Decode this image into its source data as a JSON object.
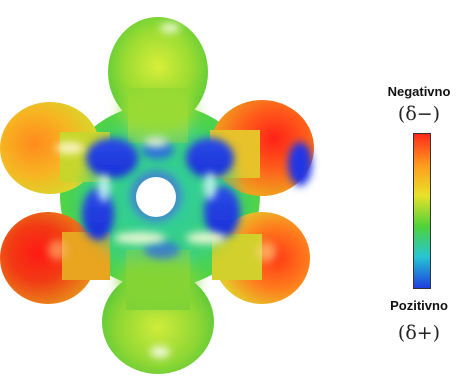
{
  "legend": {
    "negative_label": "Negativno",
    "negative_symbol": "(δ−)",
    "positive_label": "Pozitivno",
    "positive_symbol": "(δ+)"
  },
  "colors": {
    "negative": "#ff2a1a",
    "orange": "#ff9a1e",
    "yellow": "#e8e22a",
    "green": "#4fd23a",
    "cyan": "#27c4d4",
    "positive": "#1f3fe0",
    "background": "#ffffff"
  }
}
